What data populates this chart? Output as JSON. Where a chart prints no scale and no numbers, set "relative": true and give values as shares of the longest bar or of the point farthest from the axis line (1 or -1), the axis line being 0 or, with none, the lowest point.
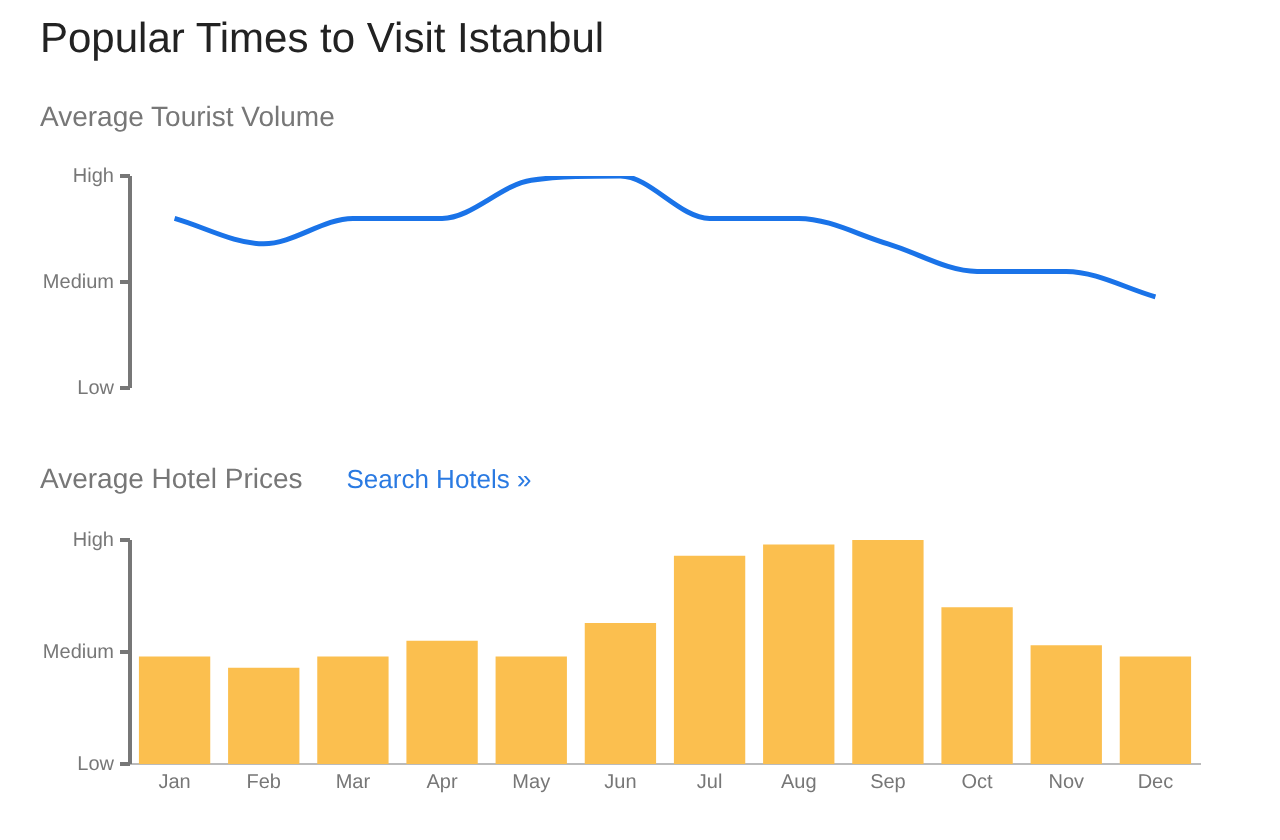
{
  "chart_data": [
    {
      "type": "line",
      "title": "Popular Times to Visit Istanbul",
      "subtitle": "Average Tourist Volume",
      "relative": true,
      "categories": [
        null,
        null,
        null,
        null,
        null,
        null,
        null,
        null,
        null,
        null,
        null,
        null
      ],
      "series": [
        {
          "color": "#1a73e8",
          "values": [
            0.8,
            0.68,
            0.8,
            0.8,
            0.98,
            1,
            0.8,
            0.8,
            0.68,
            0.55,
            0.55,
            0.43
          ]
        }
      ],
      "annotations": [
        "High",
        "Medium",
        "Low"
      ],
      "marker": "none"
    },
    {
      "type": "bar",
      "title": "Average Hotel Prices",
      "subtitle": "Search Hotels »",
      "relative": true,
      "categories": [
        "Jan",
        "Feb",
        "Mar",
        "Apr",
        "May",
        "Jun",
        "Jul",
        "Aug",
        "Sep",
        "Oct",
        "Nov",
        "Dec"
      ],
      "series": [
        {
          "color": "#fbbf4f",
          "values": [
            0.48,
            0.43,
            0.48,
            0.55,
            0.48,
            0.63,
            0.93,
            0.98,
            1,
            0.7,
            0.53,
            0.48
          ]
        }
      ],
      "annotations": [
        "High",
        "Medium",
        "Low"
      ]
    }
  ]
}
